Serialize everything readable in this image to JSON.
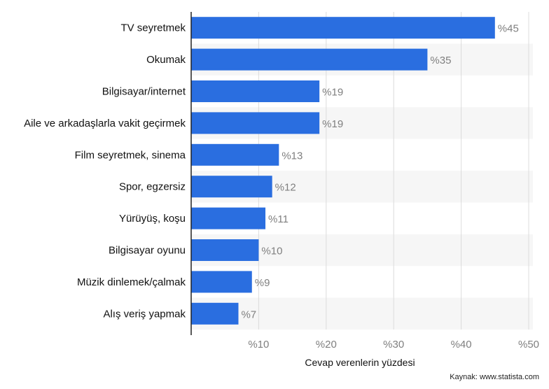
{
  "chart_data": {
    "type": "bar",
    "orientation": "horizontal",
    "categories": [
      "TV seyretmek",
      "Okumak",
      "Bilgisayar/internet",
      "Aile ve arkadaşlarla vakit geçirmek",
      "Film seyretmek, sinema",
      "Spor, egzersiz",
      "Yürüyüş, koşu",
      "Bilgisayar oyunu",
      "Müzik dinlemek/çalmak",
      "Alış veriş yapmak"
    ],
    "values": [
      45,
      35,
      19,
      19,
      13,
      12,
      11,
      10,
      9,
      7
    ],
    "value_labels": [
      "%45",
      "%35",
      "%19",
      "%19",
      "%13",
      "%12",
      "%11",
      "%10",
      "%9",
      "%7"
    ],
    "xlabel": "Cevap verenlerin yüzdesi",
    "ylabel": "",
    "xlim": [
      0,
      50
    ],
    "xticks": [
      10,
      20,
      30,
      40,
      50
    ],
    "xtick_labels": [
      "%10",
      "%20",
      "%30",
      "%40",
      "%50"
    ],
    "grid": true,
    "legend": "none"
  },
  "source": "Kaynak: www.statista.com",
  "colors": {
    "bar": "#2a6ee0",
    "grid": "#dcdcdc",
    "band": "#f6f6f6",
    "value_label": "#7f7f7f",
    "category_label": "#111111",
    "axis": "#222222"
  }
}
